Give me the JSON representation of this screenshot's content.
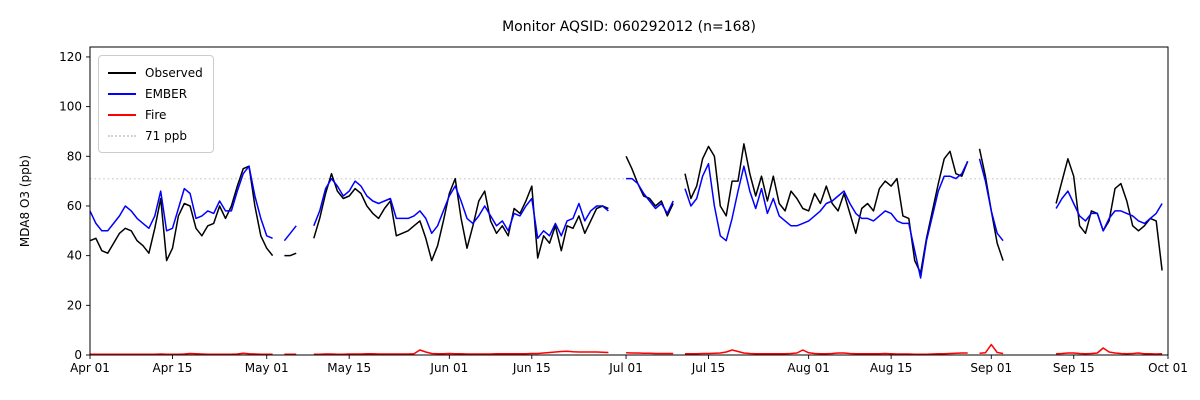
{
  "chart_data": {
    "type": "line",
    "title": "Monitor AQSID: 060292012 (n=168)",
    "xlabel": "",
    "ylabel": "MDA8 O3 (ppb)",
    "ylim": [
      0,
      124
    ],
    "y_ticks": [
      0,
      20,
      40,
      60,
      80,
      100,
      120
    ],
    "x_start": "Apr 01",
    "x_end": "Oct 01",
    "x_total_days": 183,
    "x_tick_days": [
      0,
      14,
      30,
      44,
      61,
      75,
      91,
      105,
      122,
      136,
      153,
      167,
      183
    ],
    "x_tick_labels": [
      "Apr 01",
      "Apr 15",
      "May 01",
      "May 15",
      "Jun 01",
      "Jun 15",
      "Jul 01",
      "Jul 15",
      "Aug 01",
      "Aug 15",
      "Sep 01",
      "Sep 15",
      "Oct 01"
    ],
    "grid": false,
    "legend_position": "upper left",
    "threshold": {
      "value": 71,
      "label": "71 ppb",
      "color": "#d3d3d3",
      "style": "dotted"
    },
    "legend": [
      {
        "label": "Observed",
        "color": "#000000",
        "style": "solid"
      },
      {
        "label": "EMBER",
        "color": "#0000ff",
        "style": "solid"
      },
      {
        "label": "Fire",
        "color": "#ff0000",
        "style": "solid"
      },
      {
        "label": "71 ppb",
        "color": "#d3d3d3",
        "style": "dotted"
      }
    ],
    "series": [
      {
        "name": "Observed",
        "color": "#000000",
        "values": [
          46,
          47,
          42,
          41,
          45,
          49,
          51,
          50,
          46,
          44,
          41,
          51,
          63,
          38,
          43,
          56,
          61,
          60,
          51,
          48,
          52,
          53,
          60,
          55,
          60,
          68,
          75,
          76,
          60,
          48,
          43,
          40,
          null,
          40,
          40,
          41,
          null,
          null,
          47,
          55,
          65,
          73,
          66,
          63,
          64,
          67,
          65,
          60,
          57,
          55,
          59,
          62,
          48,
          49,
          50,
          52,
          54,
          47,
          38,
          44,
          54,
          65,
          71,
          55,
          43,
          52,
          62,
          66,
          54,
          49,
          52,
          48,
          59,
          57,
          62,
          68,
          39,
          48,
          45,
          52,
          42,
          52,
          51,
          56,
          49,
          54,
          59,
          60,
          59,
          null,
          null,
          80,
          75,
          69,
          64,
          63,
          60,
          62,
          56,
          61,
          null,
          73,
          63,
          68,
          79,
          84,
          80,
          60,
          56,
          70,
          70,
          85,
          73,
          64,
          72,
          62,
          72,
          61,
          58,
          66,
          63,
          59,
          58,
          65,
          61,
          68,
          61,
          58,
          65,
          57,
          49,
          59,
          61,
          58,
          67,
          70,
          68,
          71,
          56,
          55,
          38,
          33,
          47,
          58,
          69,
          79,
          82,
          73,
          72,
          78,
          null,
          83,
          72,
          58,
          45,
          38,
          null,
          null,
          null,
          null,
          null,
          null,
          null,
          null,
          61,
          70,
          79,
          72,
          52,
          49,
          58,
          57,
          50,
          54,
          67,
          69,
          62,
          52,
          50,
          52,
          55,
          54,
          34
        ]
      },
      {
        "name": "EMBER",
        "color": "#0000ff",
        "values": [
          58,
          53,
          50,
          50,
          53,
          56,
          60,
          58,
          55,
          53,
          51,
          56,
          66,
          50,
          51,
          59,
          67,
          65,
          55,
          56,
          58,
          57,
          62,
          58,
          58,
          66,
          73,
          76,
          64,
          55,
          48,
          47,
          null,
          46,
          49,
          52,
          null,
          null,
          52,
          58,
          67,
          71,
          68,
          64,
          66,
          70,
          68,
          64,
          62,
          61,
          62,
          63,
          55,
          55,
          55,
          56,
          58,
          55,
          49,
          52,
          58,
          64,
          68,
          62,
          55,
          53,
          56,
          60,
          56,
          52,
          54,
          50,
          57,
          56,
          60,
          63,
          47,
          50,
          48,
          53,
          48,
          54,
          55,
          61,
          54,
          58,
          60,
          60,
          58,
          null,
          null,
          71,
          71,
          69,
          65,
          62,
          59,
          61,
          57,
          62,
          null,
          67,
          60,
          63,
          72,
          77,
          60,
          48,
          46,
          55,
          66,
          76,
          66,
          59,
          67,
          57,
          63,
          56,
          54,
          52,
          52,
          53,
          54,
          56,
          58,
          61,
          62,
          64,
          66,
          61,
          57,
          55,
          55,
          54,
          56,
          58,
          57,
          54,
          53,
          53,
          42,
          31,
          46,
          56,
          66,
          72,
          72,
          71,
          73,
          78,
          null,
          79,
          70,
          58,
          49,
          46,
          null,
          null,
          null,
          null,
          null,
          null,
          null,
          null,
          59,
          63,
          66,
          61,
          56,
          54,
          57,
          57,
          50,
          55,
          58,
          58,
          57,
          56,
          54,
          53,
          55,
          57,
          61
        ]
      },
      {
        "name": "Fire",
        "color": "#ff0000",
        "values": [
          0.3,
          0.3,
          0.3,
          0.3,
          0.3,
          0.3,
          0.3,
          0.3,
          0.3,
          0.3,
          0.3,
          0.3,
          0.4,
          0.3,
          0.3,
          0.3,
          0.4,
          0.6,
          0.5,
          0.4,
          0.3,
          0.3,
          0.3,
          0.3,
          0.3,
          0.4,
          0.7,
          0.5,
          0.4,
          0.3,
          0.3,
          0.3,
          null,
          0.3,
          0.3,
          0.3,
          null,
          null,
          0.3,
          0.3,
          0.4,
          0.4,
          0.3,
          0.3,
          0.4,
          0.4,
          0.4,
          0.5,
          0.5,
          0.4,
          0.4,
          0.4,
          0.4,
          0.4,
          0.4,
          0.5,
          2.0,
          1.2,
          0.6,
          0.5,
          0.5,
          0.6,
          0.5,
          0.5,
          0.4,
          0.4,
          0.4,
          0.4,
          0.4,
          0.5,
          0.5,
          0.5,
          0.5,
          0.5,
          0.5,
          0.6,
          0.6,
          0.8,
          1.0,
          1.2,
          1.4,
          1.5,
          1.3,
          1.2,
          1.2,
          1.2,
          1.2,
          1.1,
          1.0,
          null,
          null,
          0.9,
          0.8,
          0.8,
          0.7,
          0.7,
          0.6,
          0.6,
          0.6,
          0.6,
          null,
          0.5,
          0.5,
          0.5,
          0.6,
          0.6,
          0.7,
          0.8,
          1.2,
          2.0,
          1.4,
          0.8,
          0.6,
          0.5,
          0.5,
          0.5,
          0.5,
          0.5,
          0.5,
          0.6,
          0.8,
          2.0,
          0.9,
          0.6,
          0.5,
          0.5,
          0.6,
          0.8,
          0.8,
          0.6,
          0.5,
          0.5,
          0.5,
          0.5,
          0.5,
          0.6,
          0.5,
          0.4,
          0.4,
          0.4,
          0.3,
          0.3,
          0.3,
          0.4,
          0.5,
          0.5,
          0.6,
          0.7,
          0.8,
          0.8,
          null,
          0.7,
          0.9,
          4.2,
          1.0,
          0.6,
          null,
          null,
          null,
          null,
          null,
          null,
          null,
          null,
          0.5,
          0.6,
          0.8,
          0.8,
          0.6,
          0.5,
          0.6,
          0.8,
          2.8,
          1.2,
          0.8,
          0.6,
          0.5,
          0.6,
          0.8,
          0.5,
          0.5,
          0.4,
          0.5
        ]
      }
    ]
  }
}
